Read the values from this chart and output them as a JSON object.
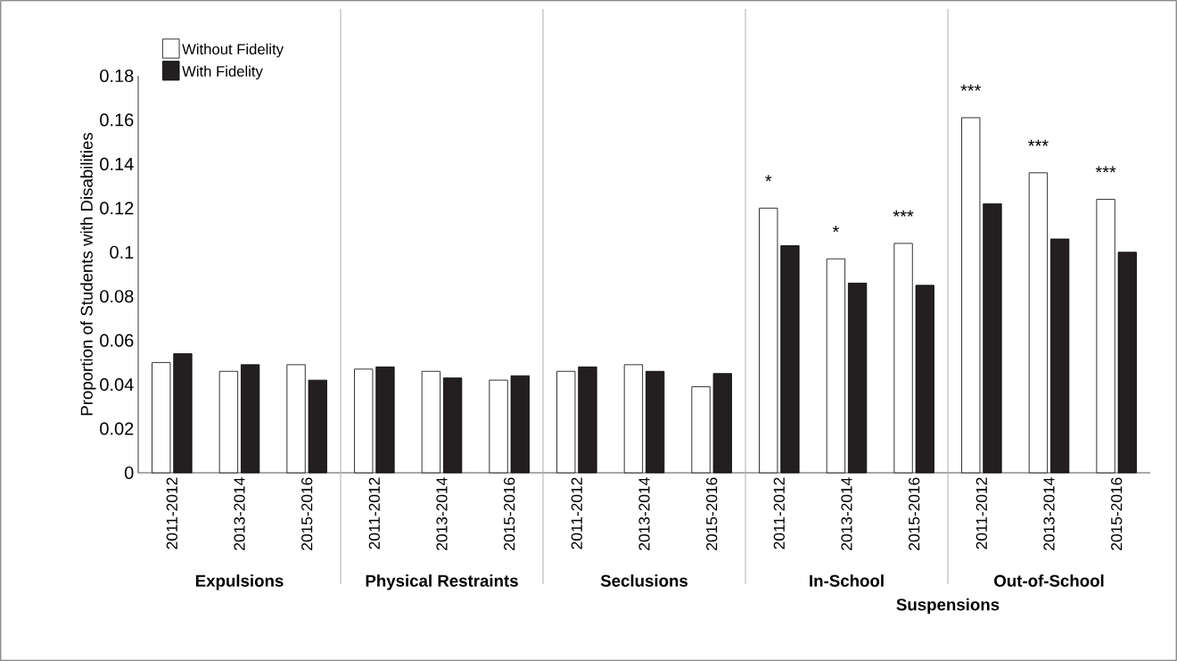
{
  "chart_data": {
    "type": "bar",
    "ylabel": "Proportion of Students with Disabilities",
    "categories": [
      "2011-2012",
      "2013-2014",
      "2015-2016",
      "2011-2012",
      "2013-2014",
      "2015-2016",
      "2011-2012",
      "2013-2014",
      "2015-2016",
      "2011-2012",
      "2013-2014",
      "2015-2016",
      "2011-2012",
      "2013-2014",
      "2015-2016"
    ],
    "series": [
      {
        "name": "Without Fidelity",
        "color": "#ffffff",
        "values": [
          0.05,
          0.046,
          0.049,
          0.047,
          0.046,
          0.042,
          0.046,
          0.049,
          0.039,
          0.12,
          0.097,
          0.104,
          0.161,
          0.136,
          0.124
        ],
        "value_labels": [
          null,
          null,
          null,
          null,
          null,
          null,
          null,
          null,
          null,
          "*",
          "*",
          "***",
          "***",
          "***",
          "***"
        ]
      },
      {
        "name": "With Fidelity",
        "color": "#231f20",
        "values": [
          0.054,
          0.049,
          0.042,
          0.048,
          0.043,
          0.044,
          0.048,
          0.046,
          0.045,
          0.103,
          0.086,
          0.085,
          0.122,
          0.106,
          0.1
        ]
      }
    ],
    "annotations": [
      "Expulsions",
      "Physical Restraints",
      "Seclusions",
      "In-School",
      "Out-of-School",
      "Suspensions"
    ],
    "ylim": [
      0,
      0.18
    ],
    "yticks": [
      0,
      0.02,
      0.04,
      0.06,
      0.08,
      0.1,
      0.12,
      0.14,
      0.16,
      0.18
    ],
    "legend": "top left",
    "grid": false
  }
}
